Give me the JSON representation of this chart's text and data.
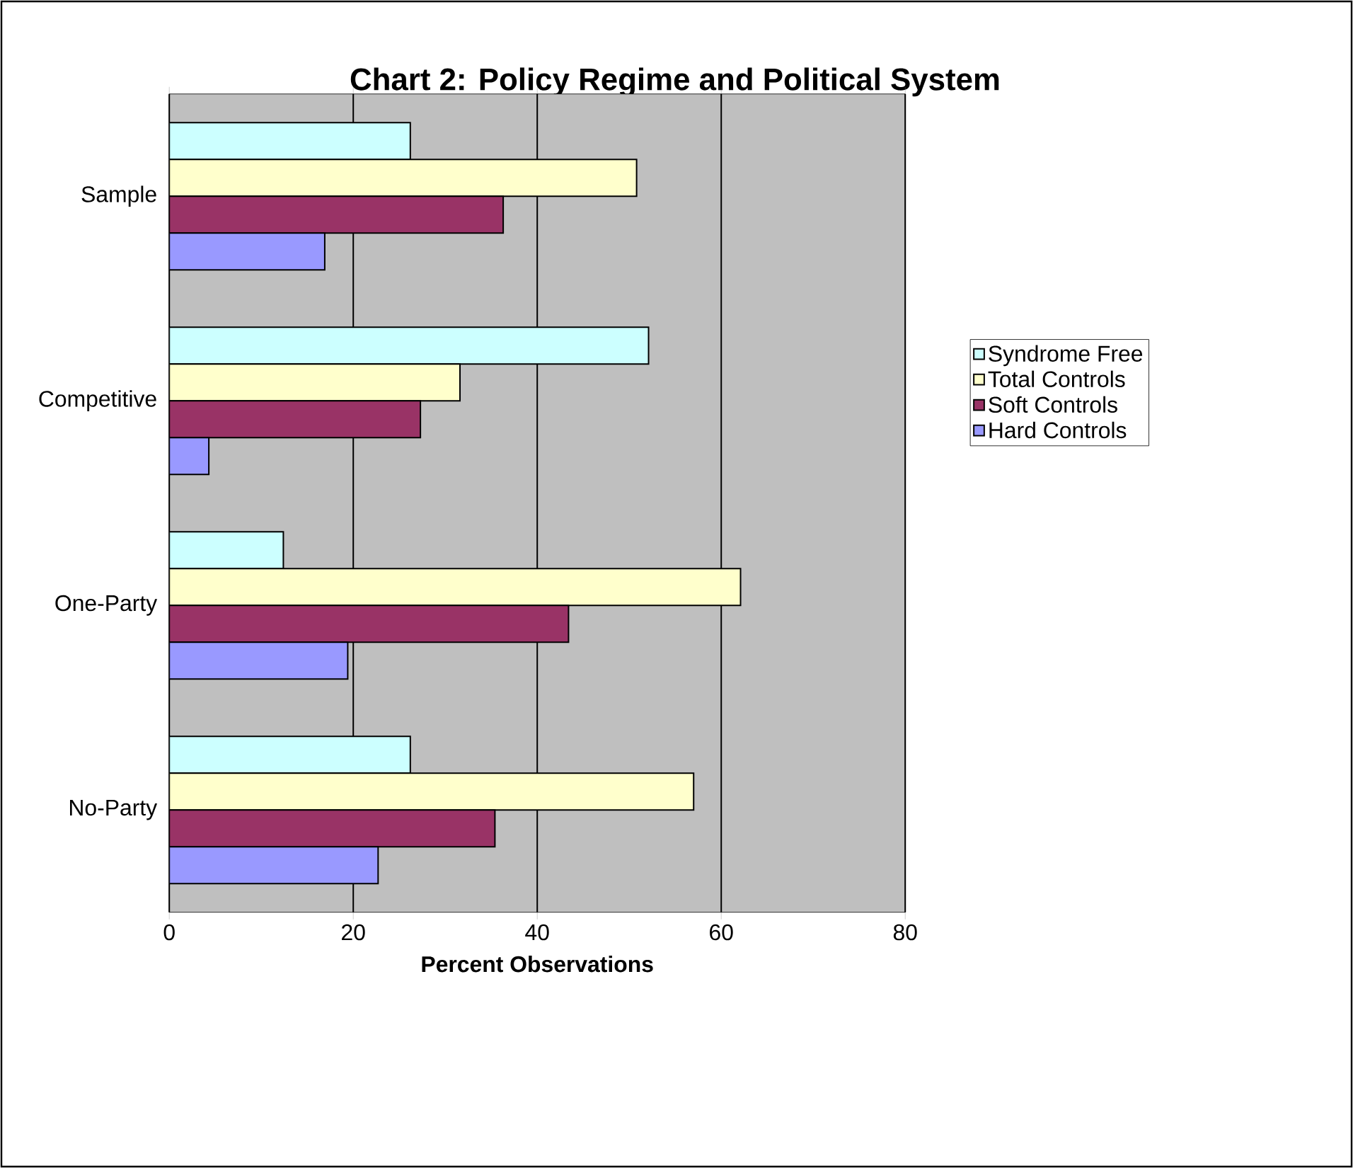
{
  "chart_data": {
    "type": "bar",
    "orientation": "horizontal",
    "title": "Chart 2: Policy Regime and Political System",
    "xlabel": "Percent Observations",
    "categories": [
      "Sample",
      "Competitive",
      "One-Party",
      "No-Party"
    ],
    "series": [
      {
        "name": "Syndrome Free",
        "color": "#ccffff",
        "values": [
          26.2,
          52.1,
          12.4,
          26.2
        ]
      },
      {
        "name": "Total Controls",
        "color": "#ffffcc",
        "values": [
          50.8,
          31.6,
          62.1,
          57.0
        ]
      },
      {
        "name": "Soft Controls",
        "color": "#993366",
        "values": [
          36.3,
          27.3,
          43.4,
          35.4
        ]
      },
      {
        "name": "Hard Controls",
        "color": "#9999ff",
        "values": [
          16.9,
          4.3,
          19.4,
          22.7
        ]
      }
    ],
    "xlim": [
      0,
      80
    ],
    "xticks": [
      0,
      20,
      40,
      60,
      80
    ],
    "grid": "x",
    "legend": "right"
  }
}
